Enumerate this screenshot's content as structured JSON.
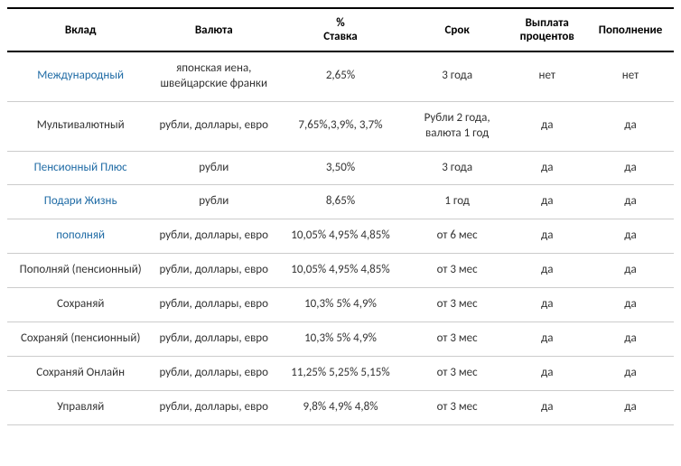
{
  "headers": {
    "deposit": "Вклад",
    "currency": "Валюта",
    "rate_line1": "%",
    "rate_line2": "Ставка",
    "term": "Срок",
    "payout_line1": "Выплата",
    "payout_line2": "процентов",
    "topup": "Пополнение"
  },
  "rows": [
    {
      "deposit": "Международный",
      "deposit_link": true,
      "currency": "японская иена, швейцарские франки",
      "rate": "2,65%",
      "term": "3 года",
      "payout": "нет",
      "topup": "нет"
    },
    {
      "deposit": "Мультивалютный",
      "deposit_link": false,
      "currency": "рубли, доллары, евро",
      "rate": "7,65%,3,9%, 3,7%",
      "term": "Рубли 2 года, валюта 1 год",
      "payout": "да",
      "topup": "да"
    },
    {
      "deposit": "Пенсионный Плюс",
      "deposit_link": true,
      "currency": "рубли",
      "rate": "3,50%",
      "term": "3 года",
      "payout": "да",
      "topup": "да"
    },
    {
      "deposit": "Подари Жизнь",
      "deposit_link": true,
      "currency": "рубли",
      "rate": "8,65%",
      "term": "1 год",
      "payout": "да",
      "topup": "да"
    },
    {
      "deposit": "пополняй",
      "deposit_link": true,
      "currency": "рубли, доллары, евро",
      "rate": "10,05% 4,95% 4,85%",
      "term": "от 6 мес",
      "payout": "да",
      "topup": "да"
    },
    {
      "deposit": "Пополняй (пенсионный)",
      "deposit_link": false,
      "currency": "рубли, доллары, евро",
      "rate": "10,05% 4,95% 4,85%",
      "term": "от 3 мес",
      "payout": "да",
      "topup": "да"
    },
    {
      "deposit": "Сохраняй",
      "deposit_link": false,
      "currency": "рубли, доллары, евро",
      "rate": "10,3% 5% 4,9%",
      "term": "от 3 мес",
      "payout": "да",
      "topup": "да"
    },
    {
      "deposit": "Сохраняй (пенсионный)",
      "deposit_link": false,
      "currency": "рубли, доллары, евро",
      "rate": "10,3% 5% 4,9%",
      "term": "от 3 мес",
      "payout": "да",
      "topup": "да"
    },
    {
      "deposit": "Сохраняй Онлайн",
      "deposit_link": false,
      "currency": "рубли, доллары, евро",
      "rate": "11,25% 5,25% 5,15%",
      "term": "от 3 мес",
      "payout": "да",
      "topup": "да"
    },
    {
      "deposit": "Управляй",
      "deposit_link": false,
      "currency": "рубли, доллары, евро",
      "rate": "9,8% 4,9% 4,8%",
      "term": "от 3 мес",
      "payout": "да",
      "topup": "да"
    }
  ],
  "styling": {
    "link_color": "#1f6ba5",
    "text_color": "#333333",
    "header_border_color": "#000000",
    "row_border_color": "#cccccc",
    "background_color": "#ffffff",
    "font_family": "Calibri, Arial, sans-serif",
    "base_font_size": 13,
    "header_font_weight": "bold"
  }
}
